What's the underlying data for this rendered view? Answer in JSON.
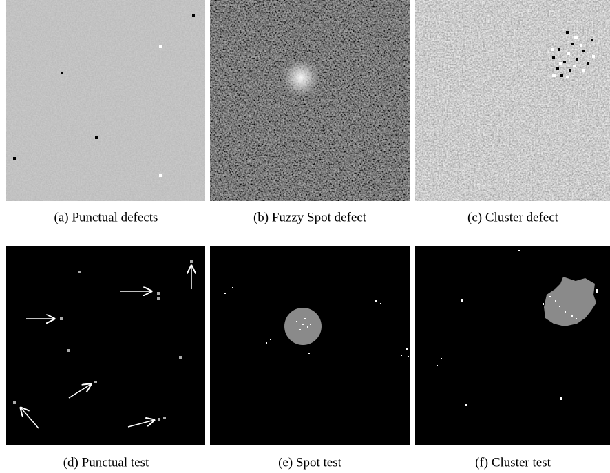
{
  "figure": {
    "panels": [
      {
        "caption": "(a)  Punctual defects"
      },
      {
        "caption": "(b)  Fuzzy Spot defect"
      },
      {
        "caption": "(c)  Cluster defect"
      },
      {
        "caption": "(d)  Punctual test"
      },
      {
        "caption": "(e)  Spot test"
      },
      {
        "caption": "(f)  Cluster test"
      }
    ]
  }
}
